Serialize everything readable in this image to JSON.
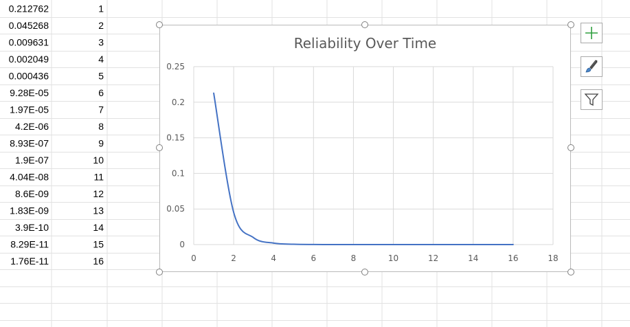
{
  "sheet": {
    "rows": [
      {
        "a": "0.212762",
        "b": "1"
      },
      {
        "a": "0.045268",
        "b": "2"
      },
      {
        "a": "0.009631",
        "b": "3"
      },
      {
        "a": "0.002049",
        "b": "4"
      },
      {
        "a": "0.000436",
        "b": "5"
      },
      {
        "a": "9.28E-05",
        "b": "6"
      },
      {
        "a": "1.97E-05",
        "b": "7"
      },
      {
        "a": "4.2E-06",
        "b": "8"
      },
      {
        "a": "8.93E-07",
        "b": "9"
      },
      {
        "a": "1.9E-07",
        "b": "10"
      },
      {
        "a": "4.04E-08",
        "b": "11"
      },
      {
        "a": "8.6E-09",
        "b": "12"
      },
      {
        "a": "1.83E-09",
        "b": "13"
      },
      {
        "a": "3.9E-10",
        "b": "14"
      },
      {
        "a": "8.29E-11",
        "b": "15"
      },
      {
        "a": "1.76E-11",
        "b": "16"
      }
    ]
  },
  "chart_buttons": {
    "add_element_icon": "plus-icon",
    "styles_icon": "paintbrush-icon",
    "filters_icon": "funnel-icon"
  },
  "colors": {
    "series": "#4472c4",
    "gridline": "#d9d9d9",
    "axis_text": "#595959",
    "sheet_grid": "#e1e1e1"
  },
  "chart_data": {
    "type": "scatter",
    "title": "Reliability Over Time",
    "smooth": true,
    "x": [
      1,
      2,
      3,
      4,
      5,
      6,
      7,
      8,
      9,
      10,
      11,
      12,
      13,
      14,
      15,
      16
    ],
    "series": [
      {
        "values": [
          0.212762,
          0.045268,
          0.009631,
          0.002049,
          0.000436,
          9.28e-05,
          1.97e-05,
          4.2e-06,
          8.93e-07,
          1.9e-07,
          4.04e-08,
          8.6e-09,
          1.83e-09,
          3.9e-10,
          8.29e-11,
          1.76e-11
        ]
      }
    ],
    "xlim": [
      0,
      18
    ],
    "ylim": [
      0,
      0.25
    ],
    "xticks": [
      0,
      2,
      4,
      6,
      8,
      10,
      12,
      14,
      16,
      18
    ],
    "yticks": [
      0,
      0.05,
      0.1,
      0.15,
      0.2,
      0.25
    ],
    "xtick_labels": [
      "0",
      "2",
      "4",
      "6",
      "8",
      "10",
      "12",
      "14",
      "16",
      "18"
    ],
    "ytick_labels": [
      "0",
      "0.05",
      "0.1",
      "0.15",
      "0.2",
      "0.25"
    ],
    "grid": true,
    "legend": "none"
  }
}
